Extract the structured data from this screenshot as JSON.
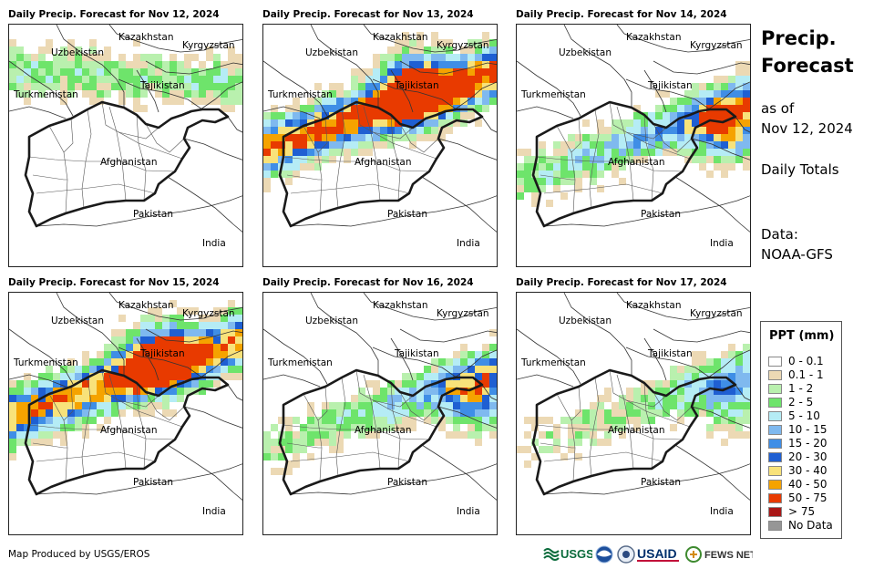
{
  "panels": [
    {
      "title": "Daily Precip. Forecast for Nov 12, 2024",
      "intensity": 0.15,
      "focus": "north"
    },
    {
      "title": "Daily Precip. Forecast for Nov 13, 2024",
      "intensity": 0.9,
      "focus": "center"
    },
    {
      "title": "Daily Precip. Forecast for Nov 14, 2024",
      "intensity": 0.6,
      "focus": "east"
    },
    {
      "title": "Daily Precip. Forecast for Nov 15, 2024",
      "intensity": 0.8,
      "focus": "center"
    },
    {
      "title": "Daily Precip. Forecast for Nov 16, 2024",
      "intensity": 0.35,
      "focus": "east"
    },
    {
      "title": "Daily Precip. Forecast for Nov 17, 2024",
      "intensity": 0.08,
      "focus": "east"
    }
  ],
  "country_labels": {
    "kazakhstan": "Kazakhstan",
    "kyrgyzstan": "Kyrgyzstan",
    "uzbekistan": "Uzbekistan",
    "tajikistan": "Tajikistan",
    "turkmenistan": "Turkmenistan",
    "afghanistan": "Afghanistan",
    "pakistan": "Pakistan",
    "india": "India"
  },
  "side": {
    "title_line1": "Precip.",
    "title_line2": "Forecast",
    "asof_line1": "as of",
    "asof_line2": "Nov 12, 2024",
    "daily": "Daily Totals",
    "data_line1": "Data:",
    "data_line2": "NOAA-GFS"
  },
  "legend": {
    "title": "PPT (mm)",
    "items": [
      {
        "label": "0 - 0.1",
        "color": "#ffffff"
      },
      {
        "label": "0.1 - 1",
        "color": "#ecd9b4"
      },
      {
        "label": "1 - 2",
        "color": "#b9f0ae"
      },
      {
        "label": "2 - 5",
        "color": "#6ee46b"
      },
      {
        "label": "5 - 10",
        "color": "#b5ecf5"
      },
      {
        "label": "10 - 15",
        "color": "#7fb9ef"
      },
      {
        "label": "15 - 20",
        "color": "#3f8ee6"
      },
      {
        "label": "20 - 30",
        "color": "#1f5fd2"
      },
      {
        "label": "30 - 40",
        "color": "#f8e27a"
      },
      {
        "label": "40 - 50",
        "color": "#f5a300"
      },
      {
        "label": "50 - 75",
        "color": "#e83a00"
      },
      {
        "label": "> 75",
        "color": "#a91717"
      },
      {
        "label": "No Data",
        "color": "#969696"
      }
    ]
  },
  "footer": "Map Produced by USGS/EROS",
  "logos": {
    "usgs": "USGS",
    "usaid": "USAID",
    "fewsnet": "FEWS NET"
  }
}
